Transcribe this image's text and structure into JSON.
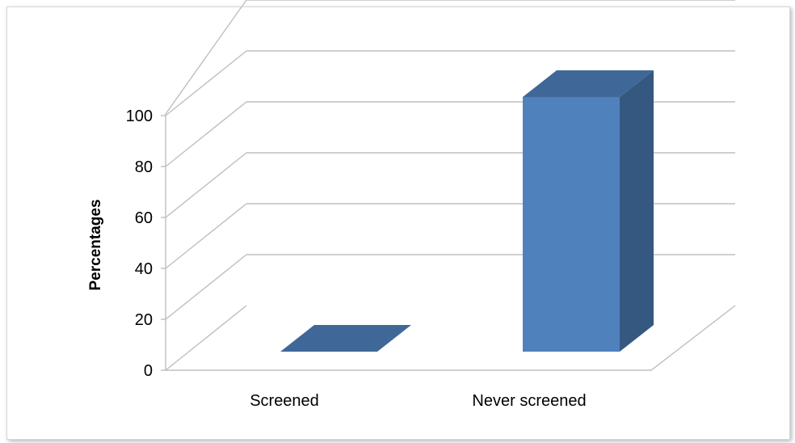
{
  "chart_data": {
    "type": "bar",
    "style": "3d-column",
    "categories": [
      "Screened",
      "Never screened"
    ],
    "values": [
      0,
      100
    ],
    "title": "",
    "xlabel": "",
    "ylabel": "Percentages",
    "ylim": [
      0,
      100
    ],
    "yticks": [
      0,
      20,
      40,
      60,
      80,
      100
    ],
    "grid": true,
    "legend": "none",
    "colors": {
      "bar_front": "#4f81bd",
      "bar_top": "#3f6898",
      "bar_side": "#34587f",
      "grid": "#bfbfbf"
    }
  }
}
